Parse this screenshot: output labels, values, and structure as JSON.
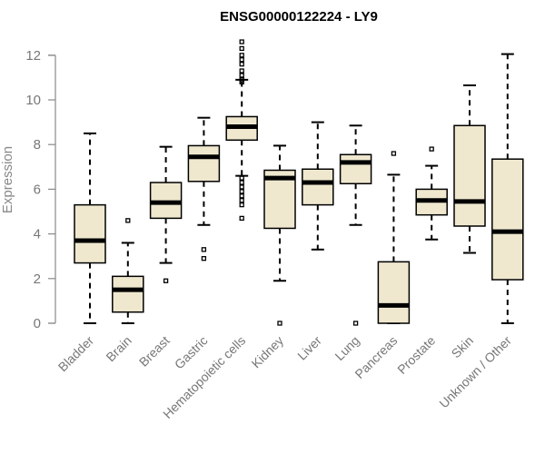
{
  "chart_data": {
    "type": "boxplot",
    "title": "ENSG00000122224 - LY9",
    "xlabel": "",
    "ylabel": "Expression",
    "ylim": [
      0,
      12.6
    ],
    "yticks": [
      0,
      2,
      4,
      6,
      8,
      10,
      12
    ],
    "categories": [
      "Bladder",
      "Brain",
      "Breast",
      "Gastric",
      "Hematopoietic cells",
      "Kidney",
      "Liver",
      "Lung",
      "Pancreas",
      "Prostate",
      "Skin",
      "Unknown / Other"
    ],
    "box_color": "#efe8cf",
    "boxes": [
      {
        "min": 0.0,
        "q1": 2.7,
        "median": 3.7,
        "q3": 5.3,
        "max": 8.5,
        "outliers": []
      },
      {
        "min": 0.0,
        "q1": 0.5,
        "median": 1.5,
        "q3": 2.1,
        "max": 3.6,
        "outliers": [
          4.6
        ]
      },
      {
        "min": 2.7,
        "q1": 4.7,
        "median": 5.4,
        "q3": 6.3,
        "max": 7.9,
        "outliers": [
          1.9
        ]
      },
      {
        "min": 4.4,
        "q1": 6.35,
        "median": 7.45,
        "q3": 7.95,
        "max": 9.2,
        "outliers": [
          3.3,
          2.9
        ]
      },
      {
        "min": 6.6,
        "q1": 8.2,
        "median": 8.8,
        "q3": 9.25,
        "max": 10.9,
        "outliers": [
          12.6,
          12.3,
          12.0,
          11.8,
          11.6,
          11.3,
          11.1,
          10.9,
          10.8,
          6.5,
          6.3,
          6.1,
          5.9,
          5.7,
          5.5,
          5.3,
          4.7
        ]
      },
      {
        "min": 1.9,
        "q1": 4.25,
        "median": 6.5,
        "q3": 6.85,
        "max": 7.95,
        "outliers": [
          0.0
        ]
      },
      {
        "min": 3.3,
        "q1": 5.3,
        "median": 6.3,
        "q3": 6.9,
        "max": 9.0,
        "outliers": []
      },
      {
        "min": 4.4,
        "q1": 6.25,
        "median": 7.2,
        "q3": 7.55,
        "max": 8.85,
        "outliers": [
          0.0
        ]
      },
      {
        "min": 0.0,
        "q1": 0.0,
        "median": 0.8,
        "q3": 2.75,
        "max": 6.65,
        "outliers": [
          7.6
        ]
      },
      {
        "min": 3.75,
        "q1": 4.85,
        "median": 5.5,
        "q3": 6.0,
        "max": 7.05,
        "outliers": [
          7.8
        ]
      },
      {
        "min": 3.15,
        "q1": 4.35,
        "median": 5.45,
        "q3": 8.85,
        "max": 10.65,
        "outliers": []
      },
      {
        "min": 0.0,
        "q1": 1.95,
        "median": 4.1,
        "q3": 7.35,
        "max": 12.05,
        "outliers": []
      }
    ]
  }
}
